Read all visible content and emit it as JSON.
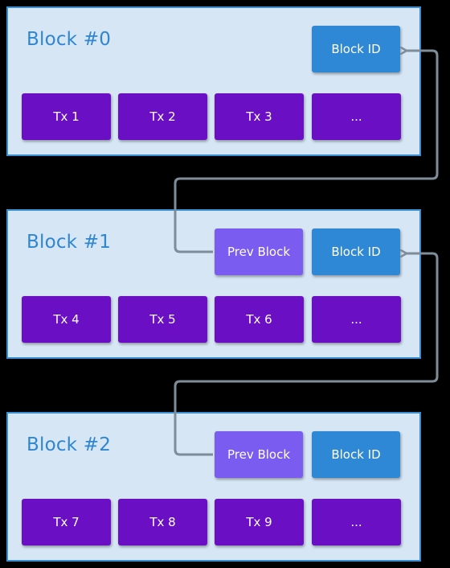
{
  "blocks": [
    {
      "title": "Block #0",
      "block_id_label": "Block ID",
      "prev_block_label": null,
      "transactions": [
        "Tx 1",
        "Tx 2",
        "Tx 3",
        "..."
      ]
    },
    {
      "title": "Block #1",
      "block_id_label": "Block ID",
      "prev_block_label": "Prev Block",
      "transactions": [
        "Tx 4",
        "Tx 5",
        "Tx 6",
        "..."
      ]
    },
    {
      "title": "Block #2",
      "block_id_label": "Block ID",
      "prev_block_label": "Prev Block",
      "transactions": [
        "Tx 7",
        "Tx 8",
        "Tx 9",
        "..."
      ]
    }
  ],
  "colors": {
    "background": "#000000",
    "block_fill": "#d6e6f5",
    "block_border": "#3a8fd3",
    "title_text": "#2f86d0",
    "block_id_fill": "#2f88d6",
    "prev_block_fill": "#7b5cf0",
    "tx_fill": "#6a0fc4",
    "connector": "#7f8c99"
  }
}
